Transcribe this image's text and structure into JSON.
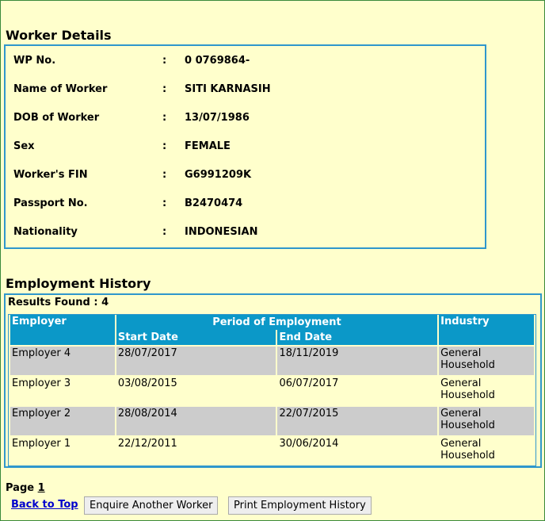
{
  "worker_details": {
    "title": "Worker Details",
    "separator": ":",
    "fields": [
      {
        "label": "WP No.",
        "value": "0 0769864-"
      },
      {
        "label": "Name of Worker",
        "value": "SITI KARNASIH"
      },
      {
        "label": "DOB of Worker",
        "value": "13/07/1986"
      },
      {
        "label": "Sex",
        "value": "FEMALE"
      },
      {
        "label": "Worker's FIN",
        "value": "G6991209K"
      },
      {
        "label": "Passport No.",
        "value": "B2470474"
      },
      {
        "label": "Nationality",
        "value": "INDONESIAN"
      }
    ]
  },
  "employment_history": {
    "title": "Employment History",
    "results": "Results Found : 4",
    "headers": {
      "employer": "Employer",
      "period": "Period of Employment",
      "start": "Start Date",
      "end": "End Date",
      "industry": "Industry"
    },
    "rows": [
      [
        "Employer 4",
        "28/07/2017",
        "18/11/2019",
        "General Household"
      ],
      [
        "Employer 3",
        "03/08/2015",
        "06/07/2017",
        "General Household"
      ],
      [
        "Employer 2",
        "28/08/2014",
        "22/07/2015",
        "General Household"
      ],
      [
        "Employer 1",
        "22/12/2011",
        "30/06/2014",
        "General Household"
      ]
    ]
  },
  "footer": {
    "page_label": "Page",
    "page_number": "1",
    "back_link": "Back to Top",
    "buttons": [
      "Enquire Another Worker",
      "Print Employment History"
    ]
  }
}
